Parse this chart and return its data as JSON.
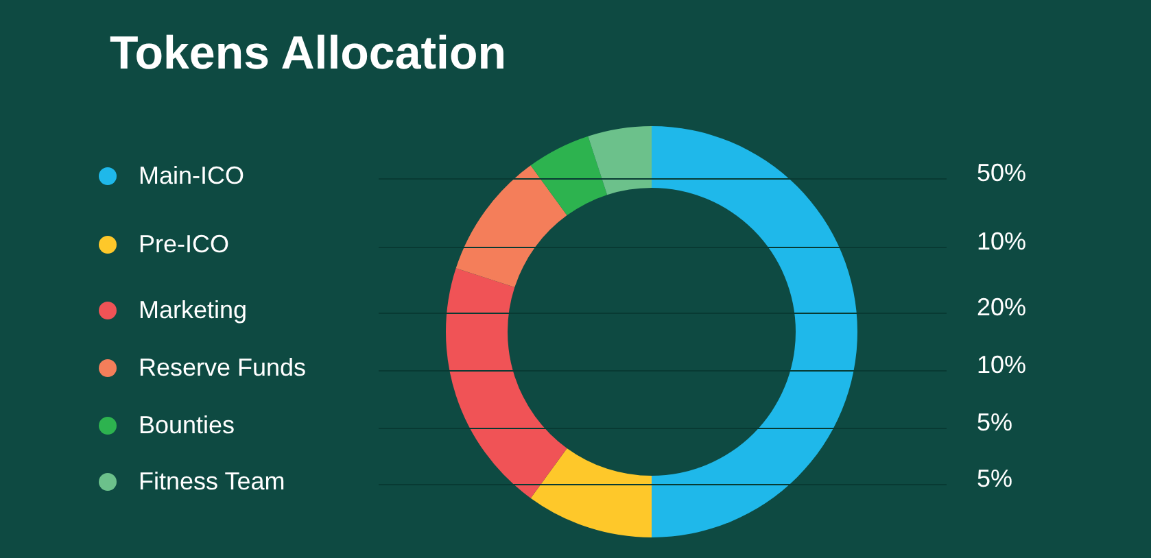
{
  "chart_data": {
    "type": "donut",
    "title": "Tokens Allocation",
    "categories": [
      "Main-ICO",
      "Pre-ICO",
      "Marketing",
      "Reserve Funds",
      "Bounties",
      "Fitness Team"
    ],
    "values": [
      50,
      10,
      20,
      10,
      5,
      5
    ],
    "value_labels": [
      "50%",
      "10%",
      "20%",
      "10%",
      "5%",
      "5%"
    ],
    "colors": [
      "#1fb8ea",
      "#fec82a",
      "#f05356",
      "#f47e5a",
      "#2db34f",
      "#6cc18b"
    ],
    "legend": "left"
  }
}
